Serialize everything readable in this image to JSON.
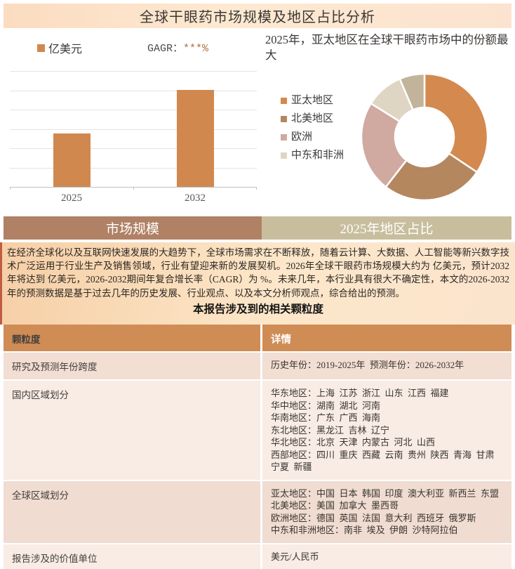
{
  "page_title": "全球干眼药市场规模及地区占比分析",
  "tabs": {
    "left": "市场规模",
    "right": "2025年地区占比"
  },
  "chart_data": [
    {
      "type": "bar",
      "legend_label": "亿美元",
      "cagr_label": "GAGR：",
      "cagr_value": "***%",
      "categories": [
        "2025",
        "2032"
      ],
      "values": [
        2.75,
        5
      ],
      "ylim": [
        0,
        6
      ],
      "grid_intervals": 6,
      "bar_color": "#d1884f",
      "axis_labels_hidden": "y-axis values not shown"
    },
    {
      "type": "donut",
      "title": "2025年，亚太地区在全球干眼药市场中的份额最大",
      "legend": [
        "亚太地区",
        "北美地区",
        "欧洲",
        "中东和非洲"
      ],
      "slices": [
        {
          "label": "亚太地区",
          "value": 34.4,
          "color": "#d4894e"
        },
        {
          "label": "北美地区",
          "value": 26.1,
          "color": "#b5875f"
        },
        {
          "label": "欧洲",
          "value": 23.4,
          "color": "#d0a9a1"
        },
        {
          "label": "中东和非洲",
          "value": 9.7,
          "color": "#dfd5c3"
        },
        {
          "label": "",
          "value": 6.4,
          "color": "#c2b49b"
        }
      ],
      "legend_position": "left",
      "inner_radius_ratio": 0.47
    }
  ],
  "paragraph": "在经济全球化以及互联网快速发展的大趋势下，全球市场需求在不断释放，随着云计算、大数据、人工智能等新兴数字技术广泛运用于行业生产及销售领域，行业有望迎来新的发展契机。2026年全球干眼药市场规模大约为 亿美元，预计2032年将达到 亿美元，2026-2032期间年复合增长率（CAGR）为 %。未来几年，本行业具有很大不确定性，本文的2026-2032年的预测数据是基于过去几年的历史发展、行业观点、以及本文分析师观点，综合给出的预测。",
  "table": {
    "title": "本报告涉及到的相关颗粒度",
    "headers": [
      "颗粒度",
      "详情"
    ],
    "rows": [
      {
        "key": "研究及预测年份跨度",
        "lines": [
          "历史年份：2019-2025年  预测年份：2026-2032年"
        ]
      },
      {
        "key": "国内区域划分",
        "lines": [
          "华东地区：上海  江苏  浙江  山东  江西  福建",
          "华中地区：湖南  湖北  河南",
          "华南地区：广东  广西  海南",
          "东北地区：黑龙江  吉林  辽宁",
          "华北地区：北京  天津  内蒙古  河北  山西",
          "西部地区：四川  重庆  西藏  云南  贵州  陕西  青海  甘肃  宁夏  新疆"
        ]
      },
      {
        "key": "全球区域划分",
        "lines": [
          "亚太地区：中国  日本  韩国  印度  澳大利亚  新西兰  东盟",
          "北美地区：美国  加拿大  墨西哥",
          "欧洲地区：德国  英国  法国  意大利  西班牙  俄罗斯",
          "中东和非洲地区：南非  埃及  伊朗  沙特阿拉伯"
        ]
      },
      {
        "key": "报告涉及的价值单位",
        "lines": [
          "美元/人民币"
        ]
      }
    ]
  },
  "colors": {
    "title_bar_bg": "#fde5cc",
    "tab_left_bg": "#b08165",
    "tab_right_bg": "#c8be9e",
    "table_header_bg": "#d08c55",
    "row_dark_bg": "#f2ded3",
    "row_light_bg": "#f8ece5",
    "accent_orange": "#d1884f"
  }
}
